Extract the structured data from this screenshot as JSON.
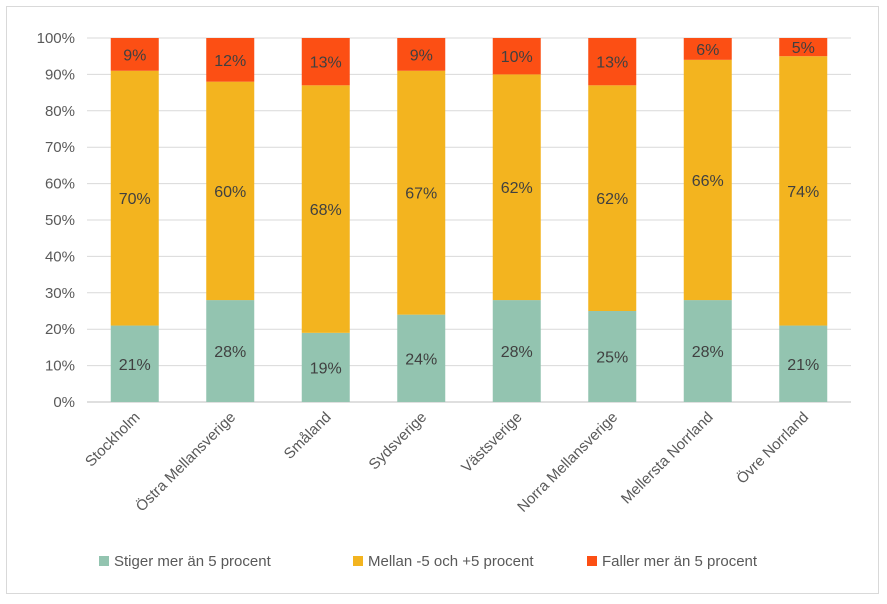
{
  "chart_data": {
    "type": "bar",
    "stacked": true,
    "categories": [
      "Stockholm",
      "Östra Mellansverige",
      "Småland",
      "Sydsverige",
      "Västsverige",
      "Norra Mellansverige",
      "Mellersta Norrland",
      "Övre Norrland"
    ],
    "series": [
      {
        "name": "Stiger mer än 5 procent",
        "color": "#93c4b0",
        "values": [
          21,
          28,
          19,
          24,
          28,
          25,
          28,
          21
        ],
        "labels": [
          "21%",
          "28%",
          "19%",
          "24%",
          "28%",
          "25%",
          "28%",
          "21%"
        ]
      },
      {
        "name": "Mellan -5 och +5 procent",
        "color": "#f3b41f",
        "values": [
          70,
          60,
          68,
          67,
          62,
          62,
          66,
          74
        ],
        "labels": [
          "70%",
          "60%",
          "68%",
          "67%",
          "62%",
          "62%",
          "66%",
          "74%"
        ]
      },
      {
        "name": "Faller mer än 5 procent",
        "color": "#fc4f14",
        "values": [
          9,
          12,
          13,
          9,
          10,
          13,
          6,
          5
        ],
        "labels": [
          "9%",
          "12%",
          "13%",
          "9%",
          "10%",
          "13%",
          "6%",
          "5%"
        ]
      }
    ],
    "yticks": [
      "0%",
      "10%",
      "20%",
      "30%",
      "40%",
      "50%",
      "60%",
      "70%",
      "80%",
      "90%",
      "100%"
    ],
    "ylim": [
      0,
      100
    ],
    "grid": true,
    "legend": "bottom",
    "title": "",
    "xlabel": "",
    "ylabel": ""
  }
}
